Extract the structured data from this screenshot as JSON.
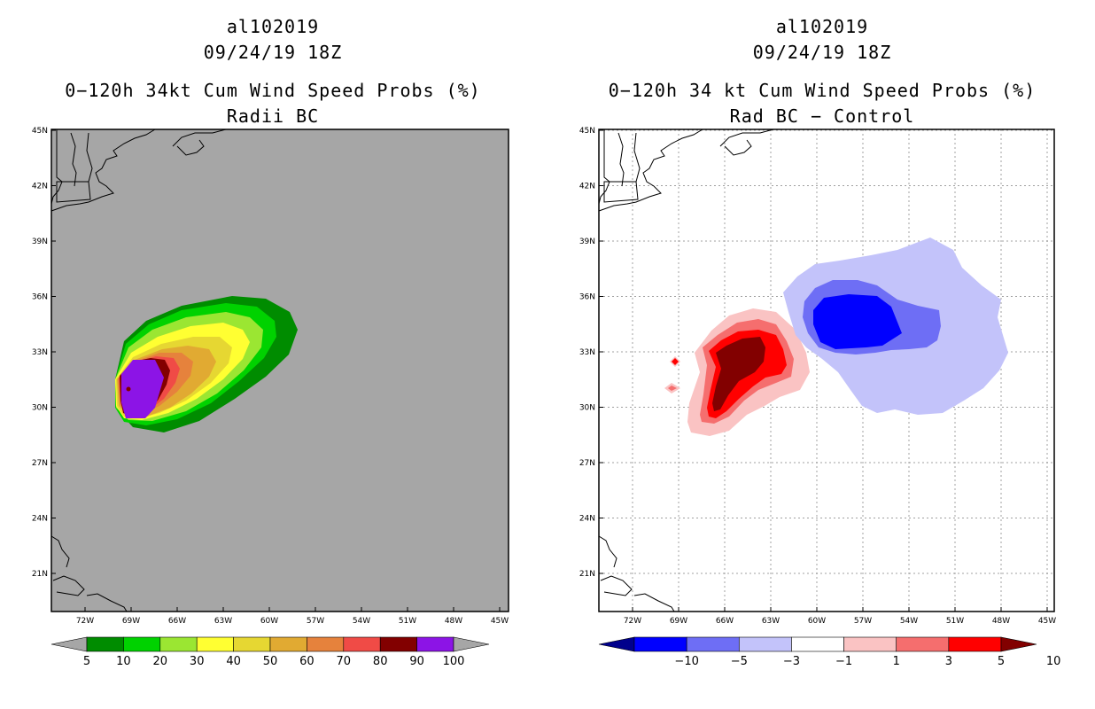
{
  "left_panel": {
    "storm_id": "al102019",
    "datetime": "09/24/19 18Z",
    "title": "0−120h 34kt Cum Wind Speed Probs (%)",
    "subtitle": "Radii BC",
    "colorbar": {
      "labels": [
        "5",
        "10",
        "20",
        "30",
        "40",
        "50",
        "60",
        "70",
        "80",
        "90",
        "100"
      ],
      "colors": [
        "#008c00",
        "#00d200",
        "#9be632",
        "#ffff32",
        "#e6d732",
        "#e1aa32",
        "#e6823c",
        "#f04b46",
        "#820000",
        "#8c14e6"
      ],
      "end_color": "#a6a6a6"
    }
  },
  "right_panel": {
    "storm_id": "al102019",
    "datetime": "09/24/19 18Z",
    "title": "0−120h 34 kt Cum Wind Speed Probs (%)",
    "subtitle": "Rad BC − Control",
    "colorbar": {
      "labels": [
        "−10",
        "−5",
        "−3",
        "−1",
        "1",
        "3",
        "5",
        "10"
      ],
      "colors": [
        "#0000ff",
        "#6e6ef5",
        "#c3c3fa",
        "#ffffff",
        "#fac3c3",
        "#f56e6e",
        "#ff0000"
      ],
      "low_end_color": "#00008c",
      "high_end_color": "#820000"
    }
  },
  "axes": {
    "lat_labels": [
      "45N",
      "42N",
      "39N",
      "36N",
      "33N",
      "30N",
      "27N",
      "24N",
      "21N"
    ],
    "lon_labels": [
      "72W",
      "69W",
      "66W",
      "63W",
      "60W",
      "57W",
      "54W",
      "51W",
      "48W",
      "45W"
    ]
  },
  "map_colors": {
    "background": "#a6a6a6",
    "p5": "#008c00",
    "p10": "#00d200",
    "p20": "#9be632",
    "p30": "#ffff32",
    "p40": "#e6d732",
    "p50": "#e1aa32",
    "p60": "#e6823c",
    "p70": "#f04b46",
    "p80": "#820000",
    "p90": "#8c14e6",
    "d_plus10": "#820000",
    "d_plus5": "#ff0000",
    "d_plus3": "#f56e6e",
    "d_plus1": "#fac3c3",
    "d_minus1": "#c3c3fa",
    "d_minus3": "#6e6ef5",
    "d_minus5": "#0000ff"
  }
}
